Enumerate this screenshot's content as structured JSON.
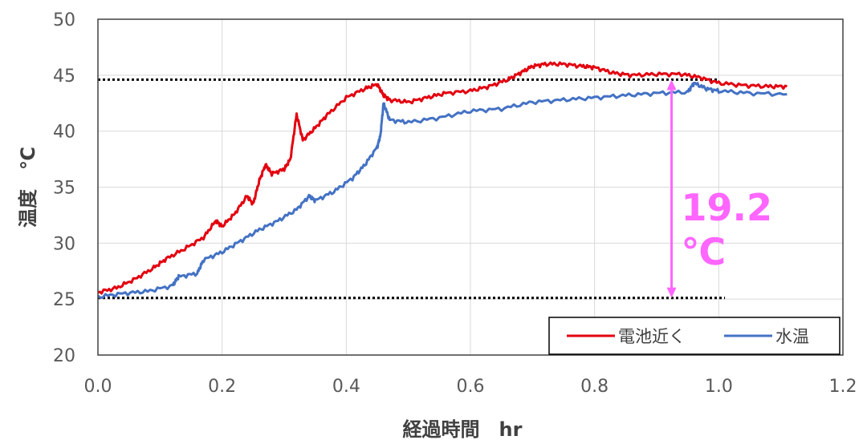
{
  "chart_data": {
    "type": "line",
    "xlabel": "経過時間　hr",
    "ylabel": "温度　℃",
    "xlim": [
      0,
      1.2
    ],
    "ylim": [
      20,
      50
    ],
    "xticks": [
      "0.0",
      "0.2",
      "0.4",
      "0.6",
      "0.8",
      "1.0",
      "1.2"
    ],
    "yticks": [
      "20",
      "25",
      "30",
      "35",
      "40",
      "45",
      "50"
    ],
    "grid": true,
    "legend_position": "bottom-right",
    "series": [
      {
        "name": "電池近く",
        "color": "#e3000f",
        "points": [
          [
            0.0,
            25.6
          ],
          [
            0.03,
            26.0
          ],
          [
            0.06,
            26.8
          ],
          [
            0.09,
            27.8
          ],
          [
            0.11,
            28.6
          ],
          [
            0.14,
            29.5
          ],
          [
            0.17,
            30.5
          ],
          [
            0.19,
            32.0
          ],
          [
            0.2,
            31.5
          ],
          [
            0.22,
            32.6
          ],
          [
            0.24,
            34.2
          ],
          [
            0.25,
            33.5
          ],
          [
            0.26,
            35.6
          ],
          [
            0.27,
            37.0
          ],
          [
            0.28,
            36.2
          ],
          [
            0.3,
            36.6
          ],
          [
            0.31,
            37.5
          ],
          [
            0.32,
            41.5
          ],
          [
            0.33,
            39.2
          ],
          [
            0.35,
            40.3
          ],
          [
            0.37,
            41.5
          ],
          [
            0.4,
            43.0
          ],
          [
            0.43,
            43.8
          ],
          [
            0.45,
            44.2
          ],
          [
            0.46,
            43.2
          ],
          [
            0.47,
            42.8
          ],
          [
            0.5,
            42.6
          ],
          [
            0.53,
            43.0
          ],
          [
            0.56,
            43.4
          ],
          [
            0.6,
            43.6
          ],
          [
            0.63,
            44.0
          ],
          [
            0.66,
            44.6
          ],
          [
            0.68,
            45.2
          ],
          [
            0.7,
            45.8
          ],
          [
            0.72,
            46.0
          ],
          [
            0.75,
            46.0
          ],
          [
            0.78,
            45.8
          ],
          [
            0.8,
            45.7
          ],
          [
            0.83,
            45.2
          ],
          [
            0.86,
            45.0
          ],
          [
            0.9,
            45.1
          ],
          [
            0.94,
            45.1
          ],
          [
            0.97,
            44.8
          ],
          [
            1.0,
            44.3
          ],
          [
            1.04,
            44.1
          ],
          [
            1.08,
            44.0
          ],
          [
            1.11,
            44.0
          ]
        ]
      },
      {
        "name": "水温",
        "color": "#4472c4",
        "points": [
          [
            0.0,
            25.2
          ],
          [
            0.04,
            25.5
          ],
          [
            0.08,
            25.7
          ],
          [
            0.12,
            26.2
          ],
          [
            0.13,
            27.0
          ],
          [
            0.16,
            27.3
          ],
          [
            0.17,
            28.5
          ],
          [
            0.2,
            29.2
          ],
          [
            0.23,
            30.2
          ],
          [
            0.26,
            31.2
          ],
          [
            0.29,
            32.0
          ],
          [
            0.32,
            33.0
          ],
          [
            0.34,
            34.2
          ],
          [
            0.35,
            33.8
          ],
          [
            0.38,
            34.6
          ],
          [
            0.41,
            35.8
          ],
          [
            0.43,
            37.0
          ],
          [
            0.45,
            38.6
          ],
          [
            0.455,
            39.6
          ],
          [
            0.46,
            42.5
          ],
          [
            0.47,
            41.0
          ],
          [
            0.5,
            40.8
          ],
          [
            0.55,
            41.2
          ],
          [
            0.6,
            41.8
          ],
          [
            0.65,
            42.0
          ],
          [
            0.7,
            42.6
          ],
          [
            0.75,
            42.8
          ],
          [
            0.8,
            43.0
          ],
          [
            0.85,
            43.2
          ],
          [
            0.9,
            43.4
          ],
          [
            0.95,
            43.5
          ],
          [
            0.96,
            44.3
          ],
          [
            0.98,
            43.8
          ],
          [
            1.0,
            43.6
          ],
          [
            1.05,
            43.4
          ],
          [
            1.11,
            43.3
          ]
        ]
      }
    ],
    "reference_lines": [
      {
        "y": 44.6,
        "x_range": [
          0.0,
          1.0
        ],
        "style": "dotted",
        "color": "#000000"
      },
      {
        "y": 25.1,
        "x_range": [
          0.0,
          1.01
        ],
        "style": "dotted",
        "color": "#000000"
      }
    ],
    "annotation": {
      "text_line1": "19.2",
      "text_line2": "℃",
      "color": "#ff66ff",
      "arrow_x": 0.924,
      "arrow_y_range": [
        25.1,
        44.6
      ]
    }
  }
}
